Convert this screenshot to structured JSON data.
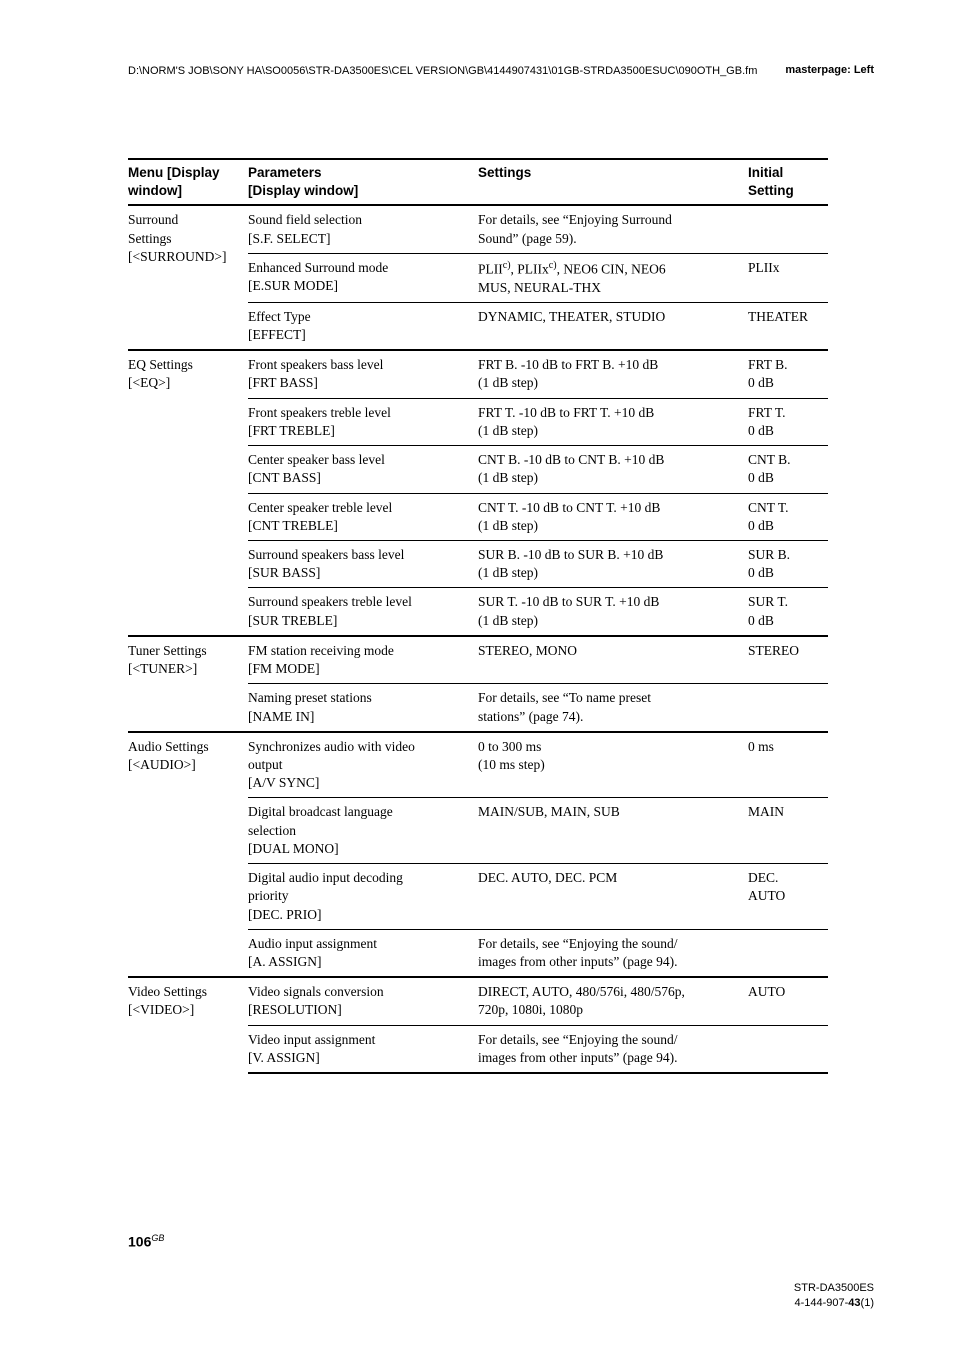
{
  "header": {
    "path": "D:\\NORM'S JOB\\SONY HA\\SO0056\\STR-DA3500ES\\CEL VERSION\\GB\\4144907431\\01GB-STRDA3500ESUC\\090OTH_GB.fm",
    "masterpage": "masterpage: Left"
  },
  "table": {
    "headers": {
      "c1a": "Menu [Display",
      "c1b": "window]",
      "c2a": "Parameters",
      "c2b": "[Display window]",
      "c3": "Settings",
      "c4a": "Initial",
      "c4b": "Setting"
    },
    "groups": [
      {
        "menu_a": "Surround",
        "menu_b": "Settings",
        "menu_c": "[<SURROUND>]",
        "rows": [
          {
            "p1": "Sound field selection",
            "p2": "[S.F. SELECT]",
            "s1": "For details, see “Enjoying Surround",
            "s2": "Sound” (page 59).",
            "i1": "",
            "i2": ""
          },
          {
            "p1": "Enhanced Surround mode",
            "p2": "[E.SUR MODE]",
            "s1_html": "PLII<sup class=\"note\">c)</sup>, PLIIx<sup class=\"note\">c)</sup>, NEO6 CIN, NEO6",
            "s2": "MUS, NEURAL-THX",
            "i1": "PLIIx",
            "i2": ""
          },
          {
            "p1": "Effect Type",
            "p2": "[EFFECT]",
            "s1": "DYNAMIC, THEATER, STUDIO",
            "s2": "",
            "i1": "THEATER",
            "i2": ""
          }
        ]
      },
      {
        "menu_a": "EQ Settings",
        "menu_b": "[<EQ>]",
        "menu_c": "",
        "rows": [
          {
            "p1": "Front speakers bass level",
            "p2": "[FRT BASS]",
            "s1": "FRT B. -10 dB to FRT B. +10 dB",
            "s2": "(1 dB step)",
            "i1": "FRT B.",
            "i2": "0 dB"
          },
          {
            "p1": "Front speakers treble level",
            "p2": "[FRT TREBLE]",
            "s1": "FRT T. -10 dB to FRT T. +10 dB",
            "s2": "(1 dB step)",
            "i1": "FRT T.",
            "i2": "0 dB"
          },
          {
            "p1": "Center speaker bass level",
            "p2": "[CNT BASS]",
            "s1": "CNT B. -10 dB to CNT B. +10 dB",
            "s2": "(1 dB step)",
            "i1": "CNT B.",
            "i2": "0 dB"
          },
          {
            "p1": "Center speaker treble level",
            "p2": "[CNT TREBLE]",
            "s1": "CNT T. -10 dB to CNT T. +10 dB",
            "s2": "(1 dB step)",
            "i1": "CNT T.",
            "i2": "0 dB"
          },
          {
            "p1": "Surround speakers bass level",
            "p2": "[SUR BASS]",
            "s1": "SUR B. -10 dB to SUR B. +10 dB",
            "s2": "(1 dB step)",
            "i1": "SUR B.",
            "i2": "0 dB"
          },
          {
            "p1": "Surround speakers treble level",
            "p2": "[SUR TREBLE]",
            "s1": "SUR T. -10 dB to SUR T. +10 dB",
            "s2": "(1 dB step)",
            "i1": "SUR T.",
            "i2": "0 dB"
          }
        ]
      },
      {
        "menu_a": "Tuner Settings",
        "menu_b": "[<TUNER>]",
        "menu_c": "",
        "rows": [
          {
            "p1": "FM station receiving mode",
            "p2": "[FM MODE]",
            "s1": "STEREO, MONO",
            "s2": "",
            "i1": "STEREO",
            "i2": ""
          },
          {
            "p1": "Naming preset stations",
            "p2": "[NAME IN]",
            "s1": "For details, see “To name preset",
            "s2": "stations” (page 74).",
            "i1": "",
            "i2": ""
          }
        ]
      },
      {
        "menu_a": "Audio Settings",
        "menu_b": "[<AUDIO>]",
        "menu_c": "",
        "rows": [
          {
            "p1": "Synchronizes audio with video",
            "p2": "output",
            "p3": "[A/V SYNC]",
            "s1": "0 to 300 ms",
            "s2": "(10 ms step)",
            "i1": "0 ms",
            "i2": ""
          },
          {
            "p1": "Digital broadcast language",
            "p2": "selection",
            "p3": "[DUAL MONO]",
            "s1": "MAIN/SUB, MAIN, SUB",
            "s2": "",
            "i1": "MAIN",
            "i2": ""
          },
          {
            "p1": "Digital audio input decoding",
            "p2": "priority",
            "p3": "[DEC. PRIO]",
            "s1": "DEC. AUTO, DEC. PCM",
            "s2": "",
            "i1": "DEC.",
            "i2": "AUTO"
          },
          {
            "p1": "Audio input assignment",
            "p2": "[A. ASSIGN]",
            "s1": "For details, see “Enjoying the sound/",
            "s2": "images from other inputs” (page 94).",
            "i1": "",
            "i2": ""
          }
        ]
      },
      {
        "menu_a": "Video Settings",
        "menu_b": "[<VIDEO>]",
        "menu_c": "",
        "rows": [
          {
            "p1": "Video signals conversion",
            "p2": "[RESOLUTION]",
            "s1": "DIRECT, AUTO, 480/576i, 480/576p,",
            "s2": "720p, 1080i, 1080p",
            "i1": "AUTO",
            "i2": ""
          },
          {
            "p1": "Video input assignment",
            "p2": "[V. ASSIGN]",
            "s1": "For details, see “Enjoying the sound/",
            "s2": "images from other inputs” (page 94).",
            "i1": "",
            "i2": ""
          }
        ]
      }
    ]
  },
  "page": {
    "number": "106",
    "suffix": "GB"
  },
  "footer": {
    "line1": "STR-DA3500ES",
    "line2_a": "4-144-907-",
    "line2_b": "43",
    "line2_c": "(1)"
  }
}
